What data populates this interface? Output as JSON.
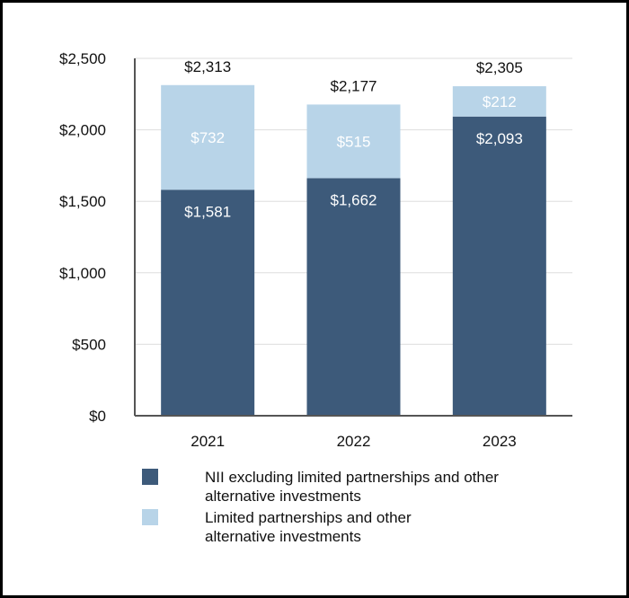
{
  "chart_data": {
    "type": "bar",
    "stacked": true,
    "categories": [
      "2021",
      "2022",
      "2023"
    ],
    "series": [
      {
        "name": "NII excluding limited partnerships and other alternative investments",
        "values": [
          1581,
          1662,
          2093
        ],
        "labels": [
          "$1,581",
          "$1,662",
          "$2,093"
        ],
        "color": "#3d5a7a"
      },
      {
        "name": "Limited partnerships and other alternative investments",
        "values": [
          732,
          515,
          212
        ],
        "labels": [
          "$732",
          "$515",
          "$212"
        ],
        "color": "#b8d4e8"
      }
    ],
    "totals": [
      2313,
      2177,
      2305
    ],
    "total_labels": [
      "$2,313",
      "$2,177",
      "$2,305"
    ],
    "ylim": [
      0,
      2500
    ],
    "yticks": [
      0,
      500,
      1000,
      1500,
      2000,
      2500
    ],
    "ytick_labels": [
      "$0",
      "$500",
      "$1,000",
      "$1,500",
      "$2,000",
      "$2,500"
    ],
    "grid": true,
    "legend_position": "bottom"
  },
  "legend": {
    "item1_line1": "NII excluding limited partnerships and other",
    "item1_line2": "alternative investments",
    "item2_line1": "Limited partnerships and other",
    "item2_line2": "alternative investments"
  }
}
